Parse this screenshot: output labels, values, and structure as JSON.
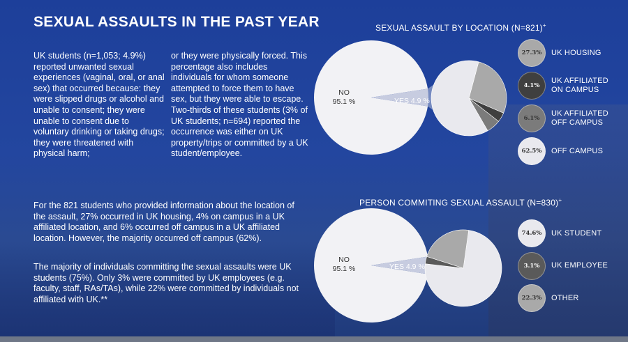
{
  "page": {
    "title": "SEXUAL ASSAULTS IN THE PAST YEAR",
    "col1": "UK students (n=1,053; 4.9%) reported unwanted sexual experiences (vaginal, oral, or anal sex) that occurred because: they were slipped drugs or alcohol and unable to consent; they were unable to consent due to voluntary drinking or taking drugs; they were threatened with physical harm;",
    "col2": "or they were physically forced. This percentage also includes individuals for whom someone attempted to force them to have sex, but they were able to escape. Two-thirds of these students (3% of UK students; n=694) reported the occurrence was either on UK property/trips or committed by a UK student/employee.",
    "para1": "For the 821 students who provided information about the location of the assault, 27% occurred in UK housing, 4% on campus in a UK affiliated location, and 6% occurred off campus in a UK affiliated location. However, the majority occurred off campus (62%).",
    "para2": "The majority of individuals committing the sexual assaults were UK students (75%). Only 3% were committed by UK employees (e.g. faculty, staff, RAs/TAs), while 22% were committed by individuals not affiliated with UK.**"
  },
  "chart_data": [
    {
      "type": "pie",
      "title": "SEXUAL ASSAULT BY LOCATION (N=821)",
      "title_sup": "+",
      "main": {
        "labels": [
          "NO",
          "YES"
        ],
        "values": [
          95.1,
          4.9
        ],
        "display": [
          "95.1 %",
          "4.9 %"
        ]
      },
      "breakdown": {
        "labels": [
          "UK HOUSING",
          "UK AFFILIATED ON CAMPUS",
          "UK AFFILIATED OFF CAMPUS",
          "OFF CAMPUS"
        ],
        "legend_lines": [
          [
            "UK HOUSING"
          ],
          [
            "UK AFFILIATED",
            "ON CAMPUS"
          ],
          [
            "UK AFFILIATED",
            "OFF CAMPUS"
          ],
          [
            "OFF CAMPUS"
          ]
        ],
        "values": [
          27.3,
          4.1,
          6.1,
          62.5
        ],
        "display": [
          "27.3%",
          "4.1%",
          "6.1%",
          "62.5%"
        ],
        "colors": [
          "#a9a9a9",
          "#3f3f3f",
          "#7b7b7b",
          "#e9e9ee"
        ]
      }
    },
    {
      "type": "pie",
      "title": "PERSON COMMITING SEXUAL ASSAULT (N=830)",
      "title_sup": "+",
      "main": {
        "labels": [
          "NO",
          "YES"
        ],
        "values": [
          95.1,
          4.9
        ],
        "display": [
          "95.1 %",
          "4.9 %"
        ]
      },
      "breakdown": {
        "labels": [
          "UK STUDENT",
          "UK EMPLOYEE",
          "OTHER"
        ],
        "legend_lines": [
          [
            "UK STUDENT"
          ],
          [
            "UK EMPLOYEE"
          ],
          [
            "OTHER"
          ]
        ],
        "values": [
          74.6,
          3.1,
          22.3
        ],
        "display": [
          "74.6%",
          "3.1%",
          "22.3%"
        ],
        "colors": [
          "#e9e9ee",
          "#5a5a5a",
          "#a9a9a9"
        ]
      }
    }
  ]
}
